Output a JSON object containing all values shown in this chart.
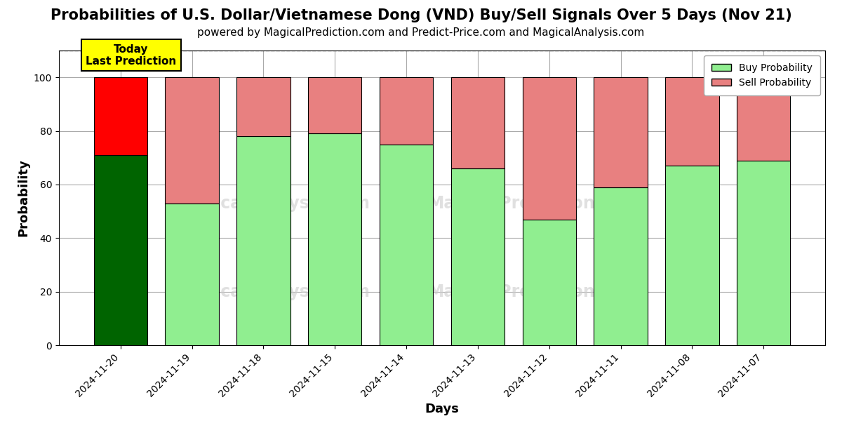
{
  "title": "Probabilities of U.S. Dollar/Vietnamese Dong (VND) Buy/Sell Signals Over 5 Days (Nov 21)",
  "subtitle": "powered by MagicalPrediction.com and Predict-Price.com and MagicalAnalysis.com",
  "xlabel": "Days",
  "ylabel": "Probability",
  "categories": [
    "2024-11-20",
    "2024-11-19",
    "2024-11-18",
    "2024-11-15",
    "2024-11-14",
    "2024-11-13",
    "2024-11-12",
    "2024-11-11",
    "2024-11-08",
    "2024-11-07"
  ],
  "buy_values": [
    71,
    53,
    78,
    79,
    75,
    66,
    47,
    59,
    67,
    69
  ],
  "sell_values": [
    29,
    47,
    22,
    21,
    25,
    34,
    53,
    41,
    33,
    31
  ],
  "today_buy_color": "#006400",
  "today_sell_color": "#ff0000",
  "buy_color": "#90EE90",
  "sell_color": "#E88080",
  "today_label": "Today\nLast Prediction",
  "legend_buy": "Buy Probability",
  "legend_sell": "Sell Probability",
  "ylim": [
    0,
    110
  ],
  "dashed_line_y": 110,
  "bar_edgecolor": "black",
  "bar_linewidth": 0.8,
  "grid_color": "#aaaaaa",
  "background_color": "#ffffff",
  "title_fontsize": 15,
  "subtitle_fontsize": 11,
  "axis_label_fontsize": 13,
  "tick_fontsize": 10
}
